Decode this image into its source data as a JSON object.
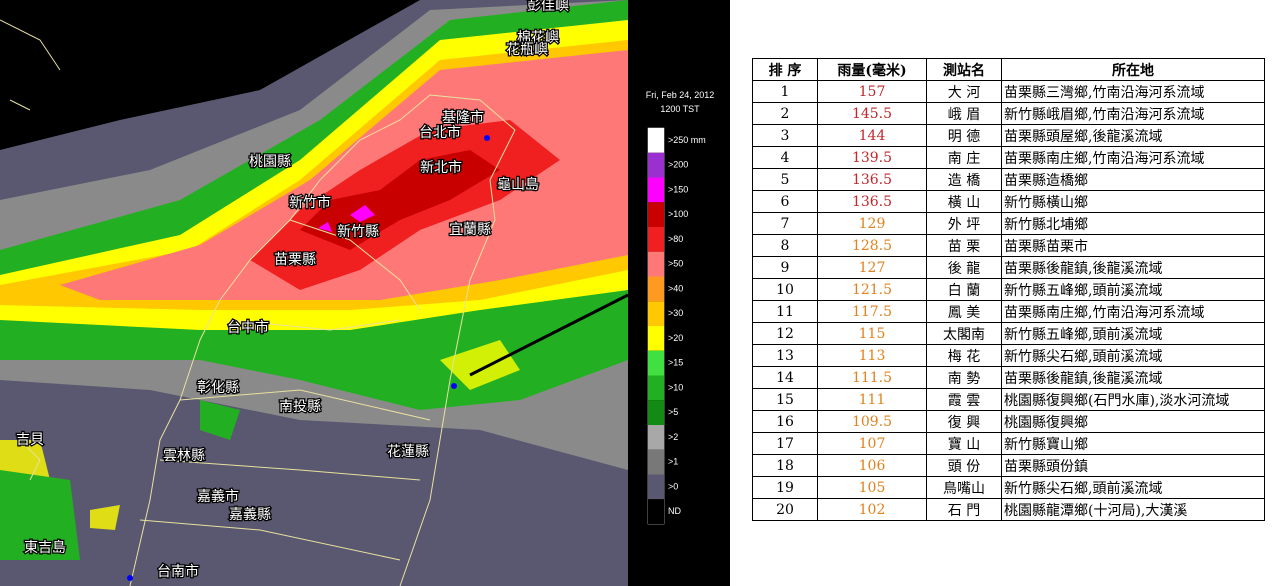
{
  "map": {
    "timestamp": "Fri, Feb 24, 2012",
    "time": "1200 TST",
    "legend": [
      {
        "label": ">250 mm",
        "color": "#ffffff"
      },
      {
        "label": ">200",
        "color": "#9a30d0"
      },
      {
        "label": ">150",
        "color": "#ff00ff"
      },
      {
        "label": ">100",
        "color": "#c80000"
      },
      {
        "label": ">80",
        "color": "#f02020"
      },
      {
        "label": ">50",
        "color": "#ff7878"
      },
      {
        "label": ">40",
        "color": "#ff9a20"
      },
      {
        "label": ">30",
        "color": "#ffc800"
      },
      {
        "label": ">20",
        "color": "#ffff00"
      },
      {
        "label": ">15",
        "color": "#40e040"
      },
      {
        "label": ">10",
        "color": "#22b022"
      },
      {
        "label": ">5",
        "color": "#138a13"
      },
      {
        "label": ">2",
        "color": "#a8a8a8"
      },
      {
        "label": ">1",
        "color": "#787878"
      },
      {
        "label": ">0",
        "color": "#5a5870"
      },
      {
        "label": "ND",
        "color": "#000000"
      }
    ],
    "places": [
      {
        "label": "彭佳嶼"
      },
      {
        "label": "棉花嶼"
      },
      {
        "label": "花瓶嶼"
      },
      {
        "label": "基隆市"
      },
      {
        "label": "台北市"
      },
      {
        "label": "桃園縣"
      },
      {
        "label": "新北市"
      },
      {
        "label": "龜山島"
      },
      {
        "label": "新竹市"
      },
      {
        "label": "新竹縣"
      },
      {
        "label": "宜蘭縣"
      },
      {
        "label": "苗栗縣"
      },
      {
        "label": "台中市"
      },
      {
        "label": "彰化縣"
      },
      {
        "label": "南投縣"
      },
      {
        "label": "花蓮縣"
      },
      {
        "label": "雲林縣"
      },
      {
        "label": "嘉義市"
      },
      {
        "label": "嘉義縣"
      },
      {
        "label": "台南市"
      },
      {
        "label": "吉貝"
      },
      {
        "label": "東吉島"
      }
    ]
  },
  "table": {
    "columns": [
      "排 序",
      "雨量(毫米)",
      "測站名",
      "所在地"
    ],
    "rows": [
      {
        "rank": 1,
        "rain": 157,
        "station": "大 河",
        "location": "苗栗縣三灣鄉,竹南沿海河系流域",
        "color": "#c0282c"
      },
      {
        "rank": 2,
        "rain": 145.5,
        "station": "峨 眉",
        "location": "新竹縣峨眉鄉,竹南沿海河系流域",
        "color": "#c0282c"
      },
      {
        "rank": 3,
        "rain": 144,
        "station": "明 德",
        "location": "苗栗縣頭屋鄉,後龍溪流域",
        "color": "#c0282c"
      },
      {
        "rank": 4,
        "rain": 139.5,
        "station": "南 庄",
        "location": "苗栗縣南庄鄉,竹南沿海河系流域",
        "color": "#c0282c"
      },
      {
        "rank": 5,
        "rain": 136.5,
        "station": "造 橋",
        "location": "苗栗縣造橋鄉",
        "color": "#c0282c"
      },
      {
        "rank": 6,
        "rain": 136.5,
        "station": "橫 山",
        "location": "新竹縣橫山鄉",
        "color": "#c0282c"
      },
      {
        "rank": 7,
        "rain": 129,
        "station": "外 坪",
        "location": "新竹縣北埔鄉",
        "color": "#e0821e"
      },
      {
        "rank": 8,
        "rain": 128.5,
        "station": "苗 栗",
        "location": "苗栗縣苗栗市",
        "color": "#e0821e"
      },
      {
        "rank": 9,
        "rain": 127,
        "station": "後 龍",
        "location": "苗栗縣後龍鎮,後龍溪流域",
        "color": "#e0821e"
      },
      {
        "rank": 10,
        "rain": 121.5,
        "station": "白 蘭",
        "location": "新竹縣五峰鄉,頭前溪流域",
        "color": "#e0821e"
      },
      {
        "rank": 11,
        "rain": 117.5,
        "station": "鳳 美",
        "location": "苗栗縣南庄鄉,竹南沿海河系流域",
        "color": "#e0821e"
      },
      {
        "rank": 12,
        "rain": 115,
        "station": "太閣南",
        "location": "新竹縣五峰鄉,頭前溪流域",
        "color": "#e0821e"
      },
      {
        "rank": 13,
        "rain": 113,
        "station": "梅 花",
        "location": "新竹縣尖石鄉,頭前溪流域",
        "color": "#e0821e"
      },
      {
        "rank": 14,
        "rain": 111.5,
        "station": "南 勢",
        "location": "苗栗縣後龍鎮,後龍溪流域",
        "color": "#e0821e"
      },
      {
        "rank": 15,
        "rain": 111,
        "station": "霞 雲",
        "location": "桃園縣復興鄉(石門水庫),淡水河流域",
        "color": "#e0821e"
      },
      {
        "rank": 16,
        "rain": 109.5,
        "station": "復 興",
        "location": "桃園縣復興鄉",
        "color": "#e0821e"
      },
      {
        "rank": 17,
        "rain": 107,
        "station": "寶 山",
        "location": "新竹縣寶山鄉",
        "color": "#e0821e"
      },
      {
        "rank": 18,
        "rain": 106,
        "station": "頭 份",
        "location": "苗栗縣頭份鎮",
        "color": "#e0821e"
      },
      {
        "rank": 19,
        "rain": 105,
        "station": "鳥嘴山",
        "location": "新竹縣尖石鄉,頭前溪流域",
        "color": "#e0821e"
      },
      {
        "rank": 20,
        "rain": 102,
        "station": "石 門",
        "location": "桃園縣龍潭鄉(十河局),大漢溪",
        "color": "#e0821e"
      }
    ]
  }
}
